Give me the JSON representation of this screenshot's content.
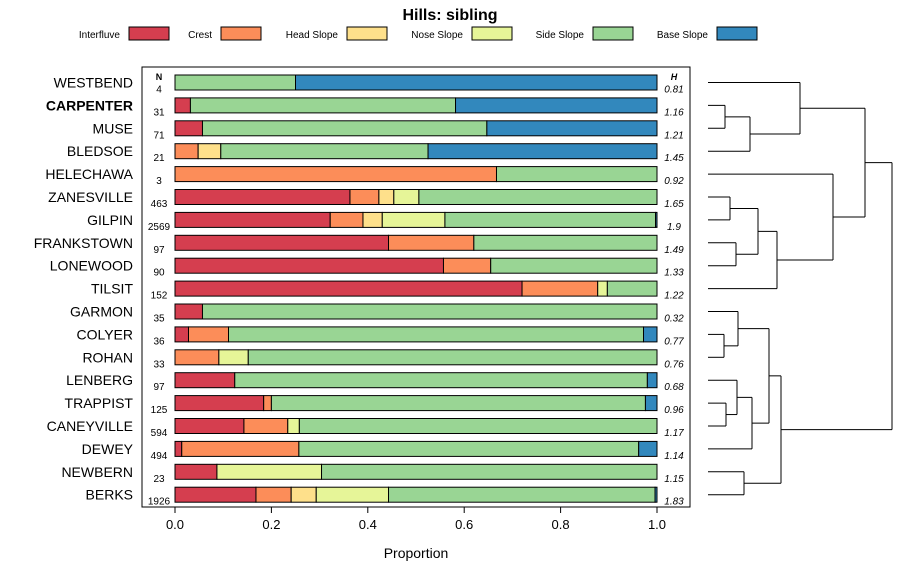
{
  "chart_data": {
    "type": "bar",
    "stacked": true,
    "orientation": "horizontal",
    "title": "Hills: sibling",
    "xlabel": "Proportion",
    "xlim": [
      0,
      1
    ],
    "xticks": [
      "0.0",
      "0.2",
      "0.4",
      "0.6",
      "0.8",
      "1.0"
    ],
    "n_header": "N",
    "h_header": "H",
    "legend_position": "top",
    "highlight": "CARPENTER",
    "series": [
      {
        "name": "Interfluve",
        "color": "#d53e4f"
      },
      {
        "name": "Crest",
        "color": "#fc8d59"
      },
      {
        "name": "Head Slope",
        "color": "#fee08b"
      },
      {
        "name": "Nose Slope",
        "color": "#e6f598"
      },
      {
        "name": "Side Slope",
        "color": "#99d594"
      },
      {
        "name": "Base Slope",
        "color": "#3288bd"
      }
    ],
    "categories": [
      "WESTBEND",
      "CARPENTER",
      "MUSE",
      "BLEDSOE",
      "HELECHAWA",
      "ZANESVILLE",
      "GILPIN",
      "FRANKSTOWN",
      "LONEWOOD",
      "TILSIT",
      "GARMON",
      "COLYER",
      "ROHAN",
      "LENBERG",
      "TRAPPIST",
      "CANEYVILLE",
      "DEWEY",
      "NEWBERN",
      "BERKS"
    ],
    "n": [
      "4",
      "31",
      "71",
      "21",
      "3",
      "463",
      "2569",
      "97",
      "90",
      "152",
      "35",
      "36",
      "33",
      "97",
      "125",
      "594",
      "494",
      "23",
      "1926"
    ],
    "h": [
      "0.81",
      "1.16",
      "1.21",
      "1.45",
      "0.92",
      "1.65",
      "1.9",
      "1.49",
      "1.33",
      "1.22",
      "0.32",
      "0.77",
      "0.76",
      "0.68",
      "0.96",
      "1.17",
      "1.14",
      "1.15",
      "1.83"
    ],
    "values": [
      [
        0.0,
        0.0,
        0.0,
        0.0,
        0.25,
        0.75
      ],
      [
        0.032,
        0.0,
        0.0,
        0.0,
        0.55,
        0.418
      ],
      [
        0.057,
        0.0,
        0.0,
        0.0,
        0.59,
        0.353
      ],
      [
        0.0,
        0.048,
        0.047,
        0.0,
        0.43,
        0.475
      ],
      [
        0.0,
        0.667,
        0.0,
        0.0,
        0.333,
        0.0
      ],
      [
        0.363,
        0.06,
        0.031,
        0.052,
        0.494,
        0.0
      ],
      [
        0.322,
        0.068,
        0.04,
        0.13,
        0.437,
        0.003
      ],
      [
        0.443,
        0.177,
        0.0,
        0.0,
        0.38,
        0.0
      ],
      [
        0.557,
        0.098,
        0.0,
        0.0,
        0.345,
        0.0
      ],
      [
        0.72,
        0.157,
        0.0,
        0.02,
        0.103,
        0.0
      ],
      [
        0.057,
        0.0,
        0.0,
        0.0,
        0.943,
        0.0
      ],
      [
        0.028,
        0.083,
        0.0,
        0.0,
        0.861,
        0.028
      ],
      [
        0.0,
        0.091,
        0.0,
        0.061,
        0.848,
        0.0
      ],
      [
        0.124,
        0.0,
        0.0,
        0.0,
        0.856,
        0.02
      ],
      [
        0.184,
        0.016,
        0.0,
        0.0,
        0.776,
        0.024
      ],
      [
        0.143,
        0.091,
        0.0,
        0.024,
        0.742,
        0.0
      ],
      [
        0.014,
        0.243,
        0.0,
        0.0,
        0.705,
        0.038
      ],
      [
        0.087,
        0.0,
        0.0,
        0.217,
        0.696,
        0.0
      ],
      [
        0.168,
        0.073,
        0.052,
        0.15,
        0.553,
        0.004
      ]
    ]
  }
}
